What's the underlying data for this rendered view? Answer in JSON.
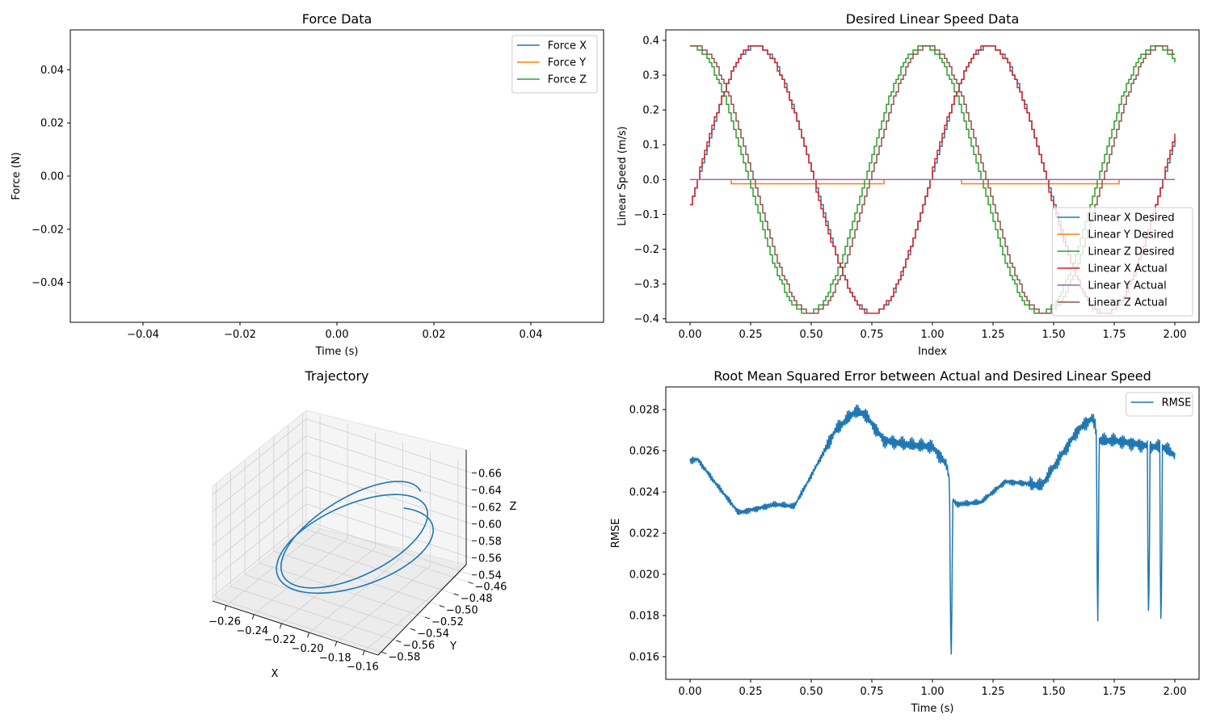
{
  "colors": {
    "c0": "#1f77b4",
    "c1": "#ff7f0e",
    "c2": "#2ca02c",
    "c3": "#d62728",
    "c4": "#9467bd",
    "c5": "#8c564b"
  },
  "chart_data": [
    {
      "id": "force",
      "type": "line",
      "title": "Force Data",
      "xlabel": "Time (s)",
      "ylabel": "Force (N)",
      "xlim": [
        -0.055,
        0.055
      ],
      "ylim": [
        -0.055,
        0.055
      ],
      "xticks": [
        -0.04,
        -0.02,
        0.0,
        0.02,
        0.04
      ],
      "xtick_labels": [
        "−0.04",
        "−0.02",
        "0.00",
        "0.02",
        "0.04"
      ],
      "yticks": [
        -0.04,
        -0.02,
        0.0,
        0.02,
        0.04
      ],
      "ytick_labels": [
        "−0.04",
        "−0.02",
        "0.00",
        "0.02",
        "0.04"
      ],
      "legend": "top-right",
      "series": [
        {
          "name": "Force X",
          "color": "#1f77b4",
          "x": [],
          "y": []
        },
        {
          "name": "Force Y",
          "color": "#ff7f0e",
          "x": [],
          "y": []
        },
        {
          "name": "Force Z",
          "color": "#2ca02c",
          "x": [],
          "y": []
        }
      ]
    },
    {
      "id": "speed",
      "type": "line",
      "title": "Desired Linear Speed Data",
      "xlabel": "Index",
      "ylabel": "Linear Speed (m/s)",
      "xlim": [
        -0.1,
        2.1
      ],
      "ylim": [
        -0.41,
        0.43
      ],
      "xticks": [
        0,
        0.25,
        0.5,
        0.75,
        1.0,
        1.25,
        1.5,
        1.75,
        2.0
      ],
      "xtick_labels": [
        "0.00",
        "0.25",
        "0.50",
        "0.75",
        "1.00",
        "1.25",
        "1.50",
        "1.75",
        "2.00"
      ],
      "yticks": [
        -0.4,
        -0.3,
        -0.2,
        -0.1,
        0.0,
        0.1,
        0.2,
        0.3,
        0.4
      ],
      "ytick_labels": [
        "−0.4",
        "−0.3",
        "−0.2",
        "−0.1",
        "0.0",
        "0.1",
        "0.2",
        "0.3",
        "0.4"
      ],
      "legend": "lower-right",
      "duration": 2.0,
      "samples": 200,
      "series": [
        {
          "name": "Linear X Desired",
          "color": "#1f77b4",
          "kind": "sin",
          "amp": 0.385,
          "period": 0.96,
          "phase_deg": -11,
          "offset": 0.0
        },
        {
          "name": "Linear Y Desired",
          "color": "#ff7f0e",
          "kind": "sin",
          "amp": 0.004,
          "period": 0.96,
          "phase_deg": 90,
          "offset": -0.008
        },
        {
          "name": "Linear Z Desired",
          "color": "#2ca02c",
          "kind": "sin",
          "amp": 0.385,
          "period": 0.96,
          "phase_deg": 90,
          "offset": 0.0
        },
        {
          "name": "Linear X Actual",
          "color": "#d62728",
          "kind": "sin",
          "amp": 0.385,
          "period": 0.96,
          "phase_deg": -3,
          "offset": 0.0,
          "lag": 0.02
        },
        {
          "name": "Linear Y Actual",
          "color": "#9467bd",
          "kind": "sin",
          "amp": 0.004,
          "period": 0.96,
          "phase_deg": -90,
          "offset": 0.0,
          "lag": 0.02
        },
        {
          "name": "Linear Z Actual",
          "color": "#8c564b",
          "kind": "sin",
          "amp": 0.385,
          "period": 0.96,
          "phase_deg": 90,
          "offset": 0.0,
          "lag": 0.02
        }
      ]
    },
    {
      "id": "trajectory",
      "type": "line3d",
      "title": "Trajectory",
      "xlabel": "X",
      "ylabel": "Y",
      "zlabel": "Z",
      "xticks": [
        -0.26,
        -0.24,
        -0.22,
        -0.2,
        -0.18,
        -0.16
      ],
      "xtick_labels": [
        "−0.26",
        "−0.24",
        "−0.22",
        "−0.20",
        "−0.18",
        "−0.16"
      ],
      "yticks": [
        -0.58,
        -0.56,
        -0.54,
        -0.52,
        -0.5,
        -0.48,
        -0.46
      ],
      "ytick_labels": [
        "−0.58",
        "−0.56",
        "−0.54",
        "−0.52",
        "−0.50",
        "−0.48",
        "−0.46"
      ],
      "zticks": [
        0.54,
        0.56,
        0.58,
        0.6,
        0.62,
        0.64,
        0.66
      ],
      "ztick_labels": [
        "0.54",
        "0.56",
        "0.58",
        "0.60",
        "0.62",
        "0.64",
        "0.66"
      ],
      "xlim": [
        -0.27,
        -0.15
      ],
      "ylim": [
        -0.585,
        -0.455
      ],
      "zlim": [
        0.535,
        0.67
      ],
      "center": [
        -0.205,
        -0.515,
        0.602
      ],
      "radius_x": 0.055,
      "radius_y": 0.06,
      "radius_z": 0.055,
      "turns": 2.1,
      "drift": [
        0.006,
        -0.01,
        -0.012
      ],
      "samples": 400
    },
    {
      "id": "rmse",
      "type": "line",
      "title": "Root Mean Squared Error between Actual and Desired Linear Speed",
      "xlabel": "Time (s)",
      "ylabel": "RMSE",
      "xlim": [
        -0.1,
        2.1
      ],
      "ylim": [
        0.0149,
        0.0291
      ],
      "xticks": [
        0,
        0.25,
        0.5,
        0.75,
        1.0,
        1.25,
        1.5,
        1.75,
        2.0
      ],
      "xtick_labels": [
        "0.00",
        "0.25",
        "0.50",
        "0.75",
        "1.00",
        "1.25",
        "1.50",
        "1.75",
        "2.00"
      ],
      "yticks": [
        0.016,
        0.018,
        0.02,
        0.022,
        0.024,
        0.026,
        0.028
      ],
      "ytick_labels": [
        "0.016",
        "0.018",
        "0.020",
        "0.022",
        "0.024",
        "0.026",
        "0.028"
      ],
      "legend": "top-right",
      "series": [
        {
          "name": "RMSE",
          "color": "#1f77b4",
          "trend_x": [
            0.0,
            0.03,
            0.1,
            0.2,
            0.28,
            0.35,
            0.43,
            0.5,
            0.6,
            0.68,
            0.72,
            0.8,
            0.9,
            1.0,
            1.06,
            1.07,
            1.08,
            1.1,
            1.2,
            1.3,
            1.4,
            1.45,
            1.5,
            1.6,
            1.66,
            1.69,
            1.75,
            1.85,
            1.9,
            1.95,
            2.0
          ],
          "trend_y": [
            0.0255,
            0.0256,
            0.0245,
            0.023,
            0.0232,
            0.0234,
            0.0233,
            0.0248,
            0.027,
            0.0279,
            0.0278,
            0.0265,
            0.0263,
            0.0262,
            0.0253,
            0.0245,
            0.0237,
            0.0234,
            0.0235,
            0.0245,
            0.0244,
            0.0243,
            0.0252,
            0.027,
            0.0276,
            0.0265,
            0.0265,
            0.0263,
            0.0262,
            0.0262,
            0.0258
          ],
          "ripple": 0.0003,
          "dips": [
            {
              "x": 1.077,
              "y": 0.0156,
              "w": 0.006
            },
            {
              "x": 1.682,
              "y": 0.0174,
              "w": 0.005
            },
            {
              "x": 1.892,
              "y": 0.0173,
              "w": 0.005
            },
            {
              "x": 1.943,
              "y": 0.0169,
              "w": 0.005
            }
          ]
        }
      ]
    }
  ]
}
